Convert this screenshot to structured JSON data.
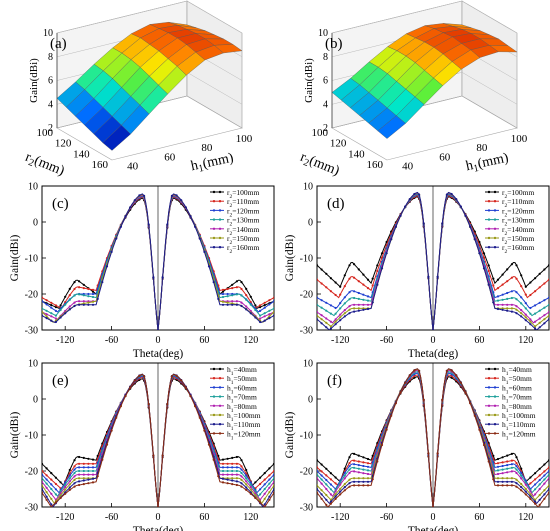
{
  "chart_data": [
    {
      "panel": "(a)",
      "type": "surface3d",
      "x": {
        "label": "h1(mm)",
        "ticks": [
          "40",
          "60",
          "80",
          "100"
        ],
        "range": [
          30,
          100
        ]
      },
      "y": {
        "label": "r2(mm)",
        "ticks": [
          "100",
          "120",
          "140",
          "160"
        ],
        "range": [
          100,
          160
        ]
      },
      "z": {
        "label": "Gain(dBi)",
        "ticks": [
          "2",
          "4",
          "6",
          "8",
          "10"
        ],
        "range": [
          2,
          10
        ]
      },
      "h1": [
        30,
        40,
        50,
        60,
        70,
        80,
        90,
        100
      ],
      "r2": [
        100,
        110,
        120,
        130,
        140,
        150,
        160
      ],
      "gain": [
        [
          4.5,
          5.5,
          6.6,
          7.6,
          8.4,
          8.8,
          8.6,
          8.0
        ],
        [
          4.2,
          5.3,
          6.5,
          7.6,
          8.5,
          8.9,
          8.8,
          8.2
        ],
        [
          3.9,
          5.0,
          6.3,
          7.5,
          8.4,
          9.0,
          8.9,
          8.4
        ],
        [
          3.6,
          4.7,
          6.0,
          7.3,
          8.3,
          9.0,
          9.0,
          8.5
        ],
        [
          3.3,
          4.4,
          5.7,
          7.0,
          8.1,
          8.9,
          9.0,
          8.6
        ],
        [
          3.0,
          4.1,
          5.4,
          6.7,
          7.9,
          8.7,
          8.9,
          8.6
        ],
        [
          2.8,
          3.8,
          5.1,
          6.4,
          7.6,
          8.5,
          8.7,
          8.5
        ]
      ]
    },
    {
      "panel": "(b)",
      "type": "surface3d",
      "x": {
        "label": "h1(mm)",
        "ticks": [
          "40",
          "60",
          "80",
          "100"
        ],
        "range": [
          30,
          100
        ]
      },
      "y": {
        "label": "r2(mm)",
        "ticks": [
          "100",
          "120",
          "140",
          "160"
        ],
        "range": [
          100,
          160
        ]
      },
      "z": {
        "label": "Gain(dBi)",
        "ticks": [
          "2",
          "4",
          "6",
          "8",
          "10"
        ],
        "range": [
          2,
          10
        ]
      },
      "h1": [
        30,
        40,
        50,
        60,
        70,
        80,
        90,
        100
      ],
      "r2": [
        100,
        110,
        120,
        130,
        140,
        150,
        160
      ],
      "gain": [
        [
          5.0,
          5.8,
          6.8,
          7.7,
          8.4,
          8.7,
          8.5,
          8.0
        ],
        [
          4.8,
          5.7,
          6.8,
          7.8,
          8.5,
          8.9,
          8.7,
          8.2
        ],
        [
          4.6,
          5.5,
          6.7,
          7.8,
          8.6,
          9.0,
          8.9,
          8.4
        ],
        [
          4.4,
          5.3,
          6.5,
          7.7,
          8.6,
          9.1,
          9.0,
          8.5
        ],
        [
          4.2,
          5.1,
          6.3,
          7.5,
          8.5,
          9.0,
          9.0,
          8.6
        ],
        [
          4.0,
          4.9,
          6.1,
          7.3,
          8.3,
          8.9,
          8.9,
          8.5
        ],
        [
          3.8,
          4.7,
          5.9,
          7.1,
          8.1,
          8.7,
          8.8,
          8.4
        ]
      ]
    },
    {
      "panel": "(c)",
      "type": "line",
      "xlabel": "Theta(deg)",
      "ylabel": "Gain(dBi)",
      "xlim": [
        -150,
        150
      ],
      "ylim": [
        -30,
        10
      ],
      "xticks": [
        "-120",
        "-60",
        "0",
        "60",
        "120"
      ],
      "yticks": [
        "10",
        "0",
        "-10",
        "-20",
        "-30"
      ],
      "legend_position": "top-right",
      "series": [
        {
          "name": "r2=100mm",
          "peak": 6.6,
          "side": -20,
          "backlobe": -16,
          "end": -22,
          "null_angle": 128,
          "null_depth": -24
        },
        {
          "name": "r2=110mm",
          "peak": 6.9,
          "side": -19,
          "backlobe": -18,
          "end": -21,
          "null_angle": 125,
          "null_depth": -24
        },
        {
          "name": "r2=120mm",
          "peak": 7.1,
          "side": -20,
          "backlobe": -20,
          "end": -22,
          "null_angle": 130,
          "null_depth": -25
        },
        {
          "name": "r2=130mm",
          "peak": 7.3,
          "side": -21,
          "backlobe": -20,
          "end": -24,
          "null_angle": 132,
          "null_depth": -26
        },
        {
          "name": "r2=140mm",
          "peak": 7.4,
          "side": -22,
          "backlobe": -22,
          "end": -25,
          "null_angle": 130,
          "null_depth": -27
        },
        {
          "name": "r2=150mm",
          "peak": 7.6,
          "side": -22,
          "backlobe": -23,
          "end": -25,
          "null_angle": 135,
          "null_depth": -28
        },
        {
          "name": "r2=160mm",
          "peak": 7.8,
          "side": -23,
          "backlobe": -23,
          "end": -26,
          "null_angle": 133,
          "null_depth": -28
        }
      ]
    },
    {
      "panel": "(d)",
      "type": "line",
      "xlabel": "Theta(deg)",
      "ylabel": "Gain(dBi)",
      "xlim": [
        -150,
        150
      ],
      "ylim": [
        -30,
        10
      ],
      "xticks": [
        "-120",
        "-60",
        "0",
        "60",
        "120"
      ],
      "yticks": [
        "10",
        "0",
        "-10",
        "-20",
        "-30"
      ],
      "legend_position": "top-right",
      "series": [
        {
          "name": "r2=100mm",
          "peak": 7.0,
          "side": -17,
          "backlobe": -11,
          "end": -12,
          "null_angle": 120,
          "null_depth": -18
        },
        {
          "name": "r2=110mm",
          "peak": 7.3,
          "side": -19,
          "backlobe": -15,
          "end": -16,
          "null_angle": 122,
          "null_depth": -21
        },
        {
          "name": "r2=120mm",
          "peak": 7.6,
          "side": -21,
          "backlobe": -19,
          "end": -21,
          "null_angle": 125,
          "null_depth": -24
        },
        {
          "name": "r2=130mm",
          "peak": 7.8,
          "side": -22,
          "backlobe": -21,
          "end": -23,
          "null_angle": 128,
          "null_depth": -26
        },
        {
          "name": "r2=140mm",
          "peak": 8.0,
          "side": -23,
          "backlobe": -23,
          "end": -25,
          "null_angle": 130,
          "null_depth": -28
        },
        {
          "name": "r2=150mm",
          "peak": 8.1,
          "side": -24,
          "backlobe": -24,
          "end": -26,
          "null_angle": 132,
          "null_depth": -29
        },
        {
          "name": "r2=160mm",
          "peak": 8.2,
          "side": -24,
          "backlobe": -25,
          "end": -27,
          "null_angle": 134,
          "null_depth": -30
        }
      ]
    },
    {
      "panel": "(e)",
      "type": "line",
      "xlabel": "Theta(deg)",
      "ylabel": "Gain(dBi)",
      "xlim": [
        -150,
        150
      ],
      "ylim": [
        -30,
        10
      ],
      "xticks": [
        "-120",
        "-60",
        "0",
        "60",
        "120"
      ],
      "yticks": [
        "10",
        "0",
        "-10",
        "-20",
        "-30"
      ],
      "legend_position": "top-right",
      "series": [
        {
          "name": "h1=40mm",
          "peak": 5.6,
          "side": -17,
          "backlobe": -16,
          "end": -18,
          "null_angle": 122,
          "null_depth": -24
        },
        {
          "name": "h1=50mm",
          "peak": 6.0,
          "side": -18,
          "backlobe": -18,
          "end": -20,
          "null_angle": 125,
          "null_depth": -25
        },
        {
          "name": "h1=60mm",
          "peak": 6.3,
          "side": -19,
          "backlobe": -19,
          "end": -21,
          "null_angle": 128,
          "null_depth": -26
        },
        {
          "name": "h1=70mm",
          "peak": 6.6,
          "side": -20,
          "backlobe": -20,
          "end": -22,
          "null_angle": 130,
          "null_depth": -27
        },
        {
          "name": "h1=80mm",
          "peak": 6.8,
          "side": -21,
          "backlobe": -21,
          "end": -23,
          "null_angle": 132,
          "null_depth": -28
        },
        {
          "name": "h1=100mm",
          "peak": 6.9,
          "side": -22,
          "backlobe": -22,
          "end": -24,
          "null_angle": 134,
          "null_depth": -29
        },
        {
          "name": "h1=110mm",
          "peak": 6.9,
          "side": -22,
          "backlobe": -23,
          "end": -25,
          "null_angle": 136,
          "null_depth": -30
        },
        {
          "name": "h1=120mm",
          "peak": 6.8,
          "side": -23,
          "backlobe": -24,
          "end": -26,
          "null_angle": 138,
          "null_depth": -30
        }
      ]
    },
    {
      "panel": "(f)",
      "type": "line",
      "xlabel": "Theta(deg)",
      "ylabel": "Gain(dBi)",
      "xlim": [
        -150,
        150
      ],
      "ylim": [
        -30,
        10
      ],
      "xticks": [
        "-120",
        "-60",
        "0",
        "60",
        "120"
      ],
      "yticks": [
        "10",
        "0",
        "-10",
        "-20",
        "-30"
      ],
      "legend_position": "top-right",
      "series": [
        {
          "name": "h1=40mm",
          "peak": 6.2,
          "side": -17,
          "backlobe": -15,
          "end": -17,
          "null_angle": 120,
          "null_depth": -23
        },
        {
          "name": "h1=50mm",
          "peak": 6.7,
          "side": -18,
          "backlobe": -17,
          "end": -19,
          "null_angle": 123,
          "null_depth": -24
        },
        {
          "name": "h1=60mm",
          "peak": 7.2,
          "side": -19,
          "backlobe": -18,
          "end": -20,
          "null_angle": 126,
          "null_depth": -25
        },
        {
          "name": "h1=70mm",
          "peak": 7.6,
          "side": -20,
          "backlobe": -19,
          "end": -21,
          "null_angle": 128,
          "null_depth": -26
        },
        {
          "name": "h1=80mm",
          "peak": 8.0,
          "side": -21,
          "backlobe": -20,
          "end": -22,
          "null_angle": 130,
          "null_depth": -27
        },
        {
          "name": "h1=100mm",
          "peak": 8.3,
          "side": -22,
          "backlobe": -22,
          "end": -24,
          "null_angle": 132,
          "null_depth": -28
        },
        {
          "name": "h1=110mm",
          "peak": 8.4,
          "side": -23,
          "backlobe": -23,
          "end": -25,
          "null_angle": 134,
          "null_depth": -29
        },
        {
          "name": "h1=120mm",
          "peak": 8.4,
          "side": -24,
          "backlobe": -24,
          "end": -26,
          "null_angle": 136,
          "null_depth": -30
        }
      ]
    }
  ],
  "series_colors": [
    "#000000",
    "#d6261e",
    "#1f3fd1",
    "#1d9f9a",
    "#b01fb0",
    "#9a9a18",
    "#1a1a8c",
    "#8a2a12"
  ]
}
